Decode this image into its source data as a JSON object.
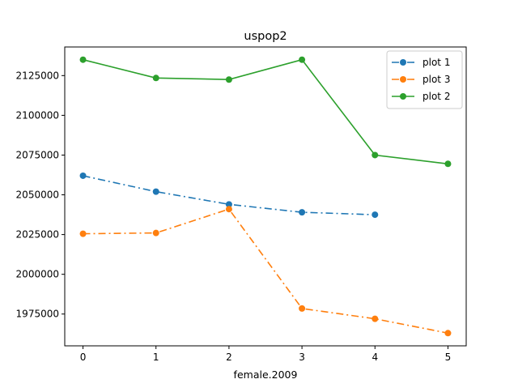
{
  "chart_data": {
    "type": "line",
    "title": "uspop2",
    "xlabel": "female.2009",
    "ylabel": "",
    "xlim": [
      -0.25,
      5.25
    ],
    "ylim": [
      1955000,
      2143000
    ],
    "x_ticks": [
      0,
      1,
      2,
      3,
      4,
      5
    ],
    "y_ticks": [
      1975000,
      2000000,
      2025000,
      2050000,
      2075000,
      2100000,
      2125000
    ],
    "grid": false,
    "legend_position": "top-right",
    "series": [
      {
        "name": "plot 1",
        "color": "#1f77b4",
        "line_style": "dashdot",
        "marker": "circle",
        "x": [
          0,
          1,
          2,
          3,
          4
        ],
        "values": [
          2062000,
          2052000,
          2044000,
          2039000,
          2037500
        ]
      },
      {
        "name": "plot 3",
        "color": "#ff7f0e",
        "line_style": "dashdot",
        "marker": "circle",
        "x": [
          0,
          1,
          2,
          3,
          4,
          5
        ],
        "values": [
          2025500,
          2026000,
          2041000,
          1978500,
          1972000,
          1963000
        ]
      },
      {
        "name": "plot 2",
        "color": "#2ca02c",
        "line_style": "solid",
        "marker": "circle",
        "x": [
          0,
          1,
          2,
          3,
          4,
          5
        ],
        "values": [
          2135000,
          2123500,
          2122500,
          2135000,
          2075000,
          2069500
        ]
      }
    ]
  }
}
